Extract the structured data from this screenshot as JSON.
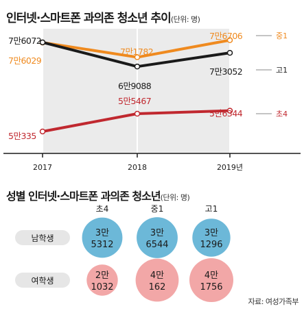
{
  "top": {
    "title": "인터넷·스마트폰 과의존 청소년 추이",
    "unit": "(단위: 명)"
  },
  "bottom": {
    "title": "성별 인터넷·스마트폰 과의존 청소년",
    "unit": "(단위: 명)"
  },
  "source": "자료: 여성가족부",
  "colors": {
    "plot_bg": "#ebebeb",
    "grid": "#ffffff",
    "middle": "#ef8a1f",
    "high": "#1a1a1a",
    "elementary": "#c0282f",
    "bubble_male": "#6cb8d8",
    "bubble_female": "#f2a7a7",
    "pill_bg": "#e6e6e6"
  },
  "chart_data": [
    {
      "type": "line",
      "title": "인터넷·스마트폰 과의존 청소년 추이",
      "unit": "(단위: 명)",
      "x": [
        2017,
        2018,
        2019
      ],
      "xtick_labels": [
        "2017",
        "2018",
        "2019년"
      ],
      "ylim": [
        44000,
        80000
      ],
      "grid": true,
      "series": [
        {
          "key": "middle",
          "name": "중1",
          "color": "#ef8a1f",
          "values": [
            76029,
            71782,
            76706
          ],
          "labels": [
            "7만6029",
            "7만1782",
            "7만6706"
          ]
        },
        {
          "key": "high",
          "name": "고1",
          "color": "#1a1a1a",
          "values": [
            76072,
            69088,
            73052
          ],
          "labels": [
            "7만6072",
            "6만9088",
            "7만3052"
          ]
        },
        {
          "key": "elementary",
          "name": "초4",
          "color": "#c0282f",
          "values": [
            50335,
            55467,
            56344
          ],
          "labels": [
            "5만335",
            "5만5467",
            "5만6344"
          ]
        }
      ]
    },
    {
      "type": "bubble",
      "title": "성별 인터넷·스마트폰 과의존 청소년",
      "unit": "(단위: 명)",
      "columns": [
        "초4",
        "중1",
        "고1"
      ],
      "rows": [
        {
          "key": "male",
          "label": "남학생",
          "color": "#6cb8d8",
          "values": [
            35312,
            36544,
            31296
          ],
          "labels": [
            [
              "3만",
              "5312"
            ],
            [
              "3만",
              "6544"
            ],
            [
              "3만",
              "1296"
            ]
          ]
        },
        {
          "key": "female",
          "label": "여학생",
          "color": "#f2a7a7",
          "values": [
            21032,
            40162,
            41756
          ],
          "labels": [
            [
              "2만",
              "1032"
            ],
            [
              "4만",
              "162"
            ],
            [
              "4만",
              "1756"
            ]
          ]
        }
      ]
    }
  ]
}
